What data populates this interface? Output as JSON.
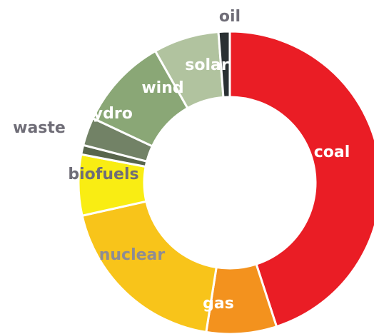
{
  "chart_data": {
    "type": "pie",
    "variant": "donut",
    "unit": "percent (estimated from slice angles)",
    "categories": [
      "coal",
      "gas",
      "nuclear",
      "biofuels",
      "waste",
      "hydro",
      "wind",
      "solar",
      "oil"
    ],
    "values": [
      45.0,
      7.5,
      19.0,
      6.5,
      1.0,
      3.0,
      9.8,
      7.0,
      1.2
    ],
    "colors": [
      "#ea1d25",
      "#f3921e",
      "#f8c41a",
      "#f9ed13",
      "#58654c",
      "#728266",
      "#8aa776",
      "#b1c39f",
      "#2a3033"
    ],
    "label_colors": [
      "#ffffff",
      "#ffffff",
      "#8e8c93",
      "#6f6d77",
      "#6f6d77",
      "#ffffff",
      "#ffffff",
      "#ffffff",
      "#6f6d77"
    ],
    "start_angle_deg": 0,
    "direction": "clockwise",
    "legend": "none"
  }
}
